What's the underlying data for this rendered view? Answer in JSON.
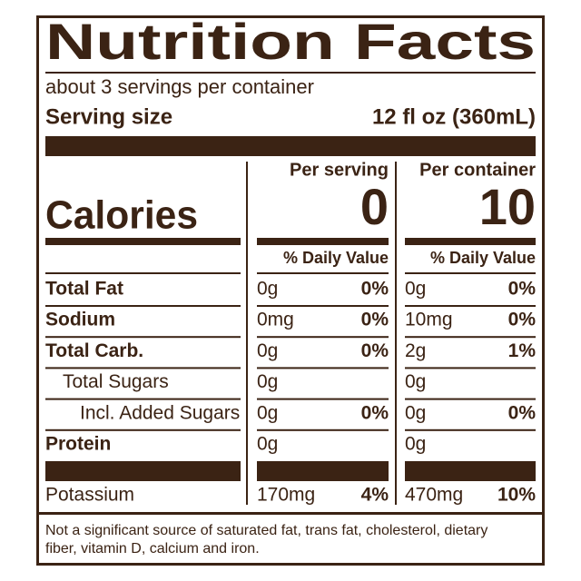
{
  "title": "Nutrition Facts",
  "servings": "about 3 servings per container",
  "serving_size": {
    "label": "Serving size",
    "value": "12 fl oz (360mL)"
  },
  "calories": {
    "label": "Calories"
  },
  "columns": [
    {
      "header": "Per serving",
      "calories": "0",
      "dv_header": "% Daily Value"
    },
    {
      "header": "Per container",
      "calories": "10",
      "dv_header": "% Daily Value"
    }
  ],
  "rows": [
    {
      "name": "Total Fat",
      "bold": true,
      "indent": 0,
      "cells": [
        [
          "0g",
          "0%"
        ],
        [
          "0g",
          "0%"
        ]
      ]
    },
    {
      "name": "Sodium",
      "bold": true,
      "indent": 0,
      "cells": [
        [
          "0mg",
          "0%"
        ],
        [
          "10mg",
          "0%"
        ]
      ]
    },
    {
      "name": "Total Carb.",
      "bold": true,
      "indent": 0,
      "cells": [
        [
          "0g",
          "0%"
        ],
        [
          "2g",
          "1%"
        ]
      ]
    },
    {
      "name": "Total Sugars",
      "bold": false,
      "indent": 1,
      "cells": [
        [
          "0g",
          null
        ],
        [
          "0g",
          null
        ]
      ]
    },
    {
      "name": "Incl. Added Sugars",
      "bold": false,
      "indent": 2,
      "cells": [
        [
          "0g",
          "0%"
        ],
        [
          "0g",
          "0%"
        ]
      ]
    },
    {
      "name": "Protein",
      "bold": true,
      "indent": 0,
      "cells": [
        [
          "0g",
          null
        ],
        [
          "0g",
          null
        ]
      ]
    }
  ],
  "minerals": [
    {
      "name": "Potassium",
      "bold": false,
      "indent": 0,
      "cells": [
        [
          "170mg",
          "4%"
        ],
        [
          "470mg",
          "10%"
        ]
      ]
    }
  ],
  "footnote": [
    "Not a significant source of saturated fat, trans fat, cholesterol, dietary",
    "fiber, vitamin D, calcium and iron."
  ]
}
